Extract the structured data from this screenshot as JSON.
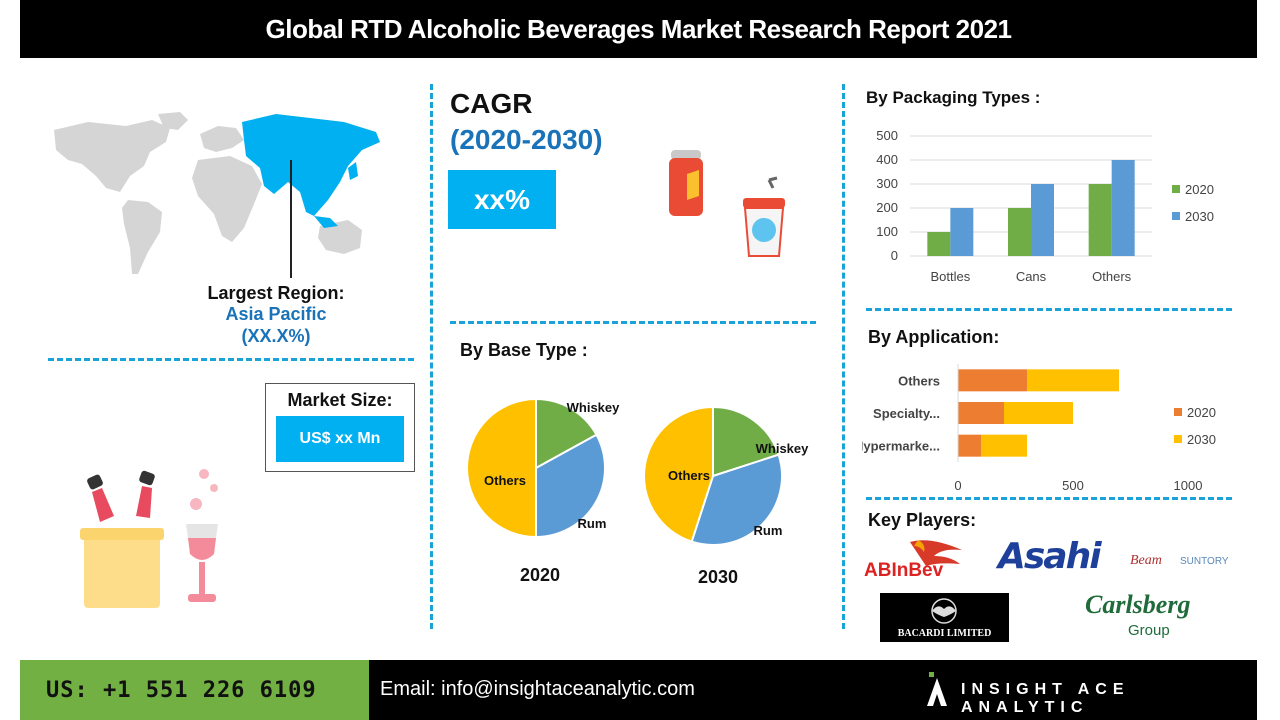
{
  "header": {
    "title": "Global RTD Alcoholic Beverages  Market Research Report 2021"
  },
  "region": {
    "label": "Largest Region:",
    "name": "Asia Pacific",
    "share": "(XX.X%)"
  },
  "market_size": {
    "label": "Market Size:",
    "value": "US$ xx Mn"
  },
  "cagr": {
    "title": "CAGR",
    "period": "(2020-2030)",
    "value": "xx%"
  },
  "base_type": {
    "title": "By Base Type :",
    "year_a": "2020",
    "year_b": "2030"
  },
  "packaging": {
    "title": "By Packaging Types :"
  },
  "application": {
    "title": "By Application:"
  },
  "key_players": {
    "title": "Key Players:",
    "logos": [
      "ABInBev",
      "Asahi",
      "Beam",
      "SUNTORY",
      "BACARDI LIMITED",
      "Carlsberg",
      "Group"
    ]
  },
  "footer": {
    "phone": "US:  +1 551 226 6109",
    "email": "Email: info@insightaceanalytic.com",
    "brand": "INSIGHT ACE ANALYTIC"
  },
  "colors": {
    "blue": "#5b9bd5",
    "green": "#70ad47",
    "orange": "#ed7d31",
    "gold": "#ffc000",
    "accent": "#00b0f0"
  },
  "chart_data": [
    {
      "id": "packaging",
      "type": "bar",
      "categories": [
        "Bottles",
        "Cans",
        "Others"
      ],
      "series": [
        {
          "name": "2020",
          "values": [
            100,
            200,
            300
          ]
        },
        {
          "name": "2030",
          "values": [
            200,
            300,
            400
          ]
        }
      ],
      "ylim": [
        0,
        500
      ],
      "yticks": [
        0,
        100,
        200,
        300,
        400,
        500
      ],
      "legend": "right"
    },
    {
      "id": "application",
      "type": "bar",
      "orientation": "horizontal",
      "stacked": true,
      "categories": [
        "Others",
        "Specialty...",
        "Hypermarke..."
      ],
      "series": [
        {
          "name": "2020",
          "values": [
            300,
            200,
            100
          ]
        },
        {
          "name": "2030",
          "values": [
            400,
            300,
            200
          ]
        }
      ],
      "xlim": [
        0,
        1000
      ],
      "xticks": [
        0,
        500,
        1000
      ],
      "legend": "right"
    },
    {
      "id": "base_2020",
      "type": "pie",
      "title": "2020",
      "labels": [
        "Whiskey",
        "Rum",
        "Others"
      ],
      "values": [
        17,
        33,
        50
      ]
    },
    {
      "id": "base_2030",
      "type": "pie",
      "title": "2030",
      "labels": [
        "Whiskey",
        "Rum",
        "Others"
      ],
      "values": [
        20,
        35,
        45
      ]
    }
  ]
}
